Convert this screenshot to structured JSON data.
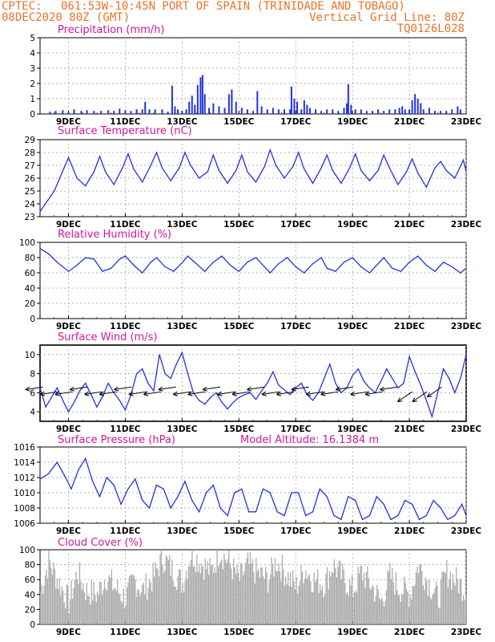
{
  "header": {
    "source": "CPTEC:",
    "location": "061:53W-10:45N   PORT OF SPAIN (TRINIDADE AND TOBAGO)",
    "date": "08DEC2020 80Z (GMT)",
    "grid_line": "Vertical Grid Line: 80Z",
    "run_code": "TQ0126L028"
  },
  "colors": {
    "header": "#e8742a",
    "title": "#d4169a",
    "series": "#2233dd",
    "bars": "#2233dd",
    "cloud": "#aaaaaa"
  },
  "x_ticks": [
    "9DEC",
    "11DEC",
    "13DEC",
    "15DEC",
    "17DEC",
    "19DEC",
    "21DEC",
    "23DEC"
  ],
  "chart_data": [
    {
      "type": "bar",
      "title": "Precipitation (mm/h)",
      "ylim": [
        0,
        5
      ],
      "yticks": [
        "0",
        "1",
        "2",
        "3",
        "4",
        "5"
      ],
      "x_range_days": [
        8.0,
        23.0
      ],
      "points": [
        [
          8.35,
          0.15
        ],
        [
          8.55,
          0.2
        ],
        [
          8.8,
          0.25
        ],
        [
          9.0,
          0.1
        ],
        [
          9.2,
          0.3
        ],
        [
          9.45,
          0.2
        ],
        [
          9.65,
          0.25
        ],
        [
          9.9,
          0.2
        ],
        [
          10.15,
          0.2
        ],
        [
          10.4,
          0.25
        ],
        [
          10.6,
          0.2
        ],
        [
          10.8,
          0.35
        ],
        [
          11.0,
          0.25
        ],
        [
          11.2,
          0.2
        ],
        [
          11.4,
          0.3
        ],
        [
          11.6,
          0.3
        ],
        [
          11.7,
          0.8
        ],
        [
          11.85,
          0.3
        ],
        [
          12.05,
          0.3
        ],
        [
          12.3,
          0.3
        ],
        [
          12.5,
          0.15
        ],
        [
          12.65,
          1.85
        ],
        [
          12.75,
          0.5
        ],
        [
          12.85,
          0.3
        ],
        [
          13.0,
          0.2
        ],
        [
          13.15,
          0.3
        ],
        [
          13.25,
          0.8
        ],
        [
          13.35,
          1.2
        ],
        [
          13.45,
          0.6
        ],
        [
          13.55,
          1.9
        ],
        [
          13.65,
          2.4
        ],
        [
          13.72,
          2.55
        ],
        [
          13.8,
          1.3
        ],
        [
          13.95,
          0.4
        ],
        [
          14.1,
          0.7
        ],
        [
          14.3,
          0.5
        ],
        [
          14.5,
          0.4
        ],
        [
          14.65,
          1.3
        ],
        [
          14.75,
          1.6
        ],
        [
          14.9,
          0.8
        ],
        [
          15.1,
          0.4
        ],
        [
          15.3,
          0.3
        ],
        [
          15.5,
          0.2
        ],
        [
          15.65,
          1.5
        ],
        [
          15.8,
          0.5
        ],
        [
          16.0,
          0.3
        ],
        [
          16.2,
          0.4
        ],
        [
          16.4,
          0.3
        ],
        [
          16.6,
          0.3
        ],
        [
          16.8,
          0.3
        ],
        [
          16.85,
          1.8
        ],
        [
          16.95,
          1.0
        ],
        [
          17.05,
          0.8
        ],
        [
          17.2,
          0.3
        ],
        [
          17.3,
          0.9
        ],
        [
          17.4,
          0.6
        ],
        [
          17.5,
          0.4
        ],
        [
          17.7,
          0.3
        ],
        [
          17.9,
          0.2
        ],
        [
          18.1,
          0.3
        ],
        [
          18.3,
          0.3
        ],
        [
          18.5,
          0.2
        ],
        [
          18.7,
          0.4
        ],
        [
          18.8,
          0.7
        ],
        [
          18.85,
          1.95
        ],
        [
          18.95,
          0.6
        ],
        [
          19.1,
          0.3
        ],
        [
          19.3,
          0.3
        ],
        [
          19.5,
          0.2
        ],
        [
          19.7,
          0.2
        ],
        [
          19.9,
          0.3
        ],
        [
          20.1,
          0.2
        ],
        [
          20.3,
          0.3
        ],
        [
          20.5,
          0.3
        ],
        [
          20.65,
          0.4
        ],
        [
          20.75,
          0.5
        ],
        [
          20.85,
          0.3
        ],
        [
          21.0,
          0.3
        ],
        [
          21.1,
          0.9
        ],
        [
          21.2,
          1.3
        ],
        [
          21.3,
          1.0
        ],
        [
          21.4,
          0.7
        ],
        [
          21.5,
          0.3
        ],
        [
          21.7,
          0.4
        ],
        [
          21.9,
          0.2
        ],
        [
          22.1,
          0.2
        ],
        [
          22.3,
          0.2
        ],
        [
          22.5,
          0.3
        ],
        [
          22.7,
          0.5
        ],
        [
          22.8,
          0.3
        ]
      ]
    },
    {
      "type": "line",
      "title": "Surface Temperature (nC)",
      "ylim": [
        23,
        29
      ],
      "yticks": [
        "23",
        "24",
        "25",
        "26",
        "27",
        "28",
        "29"
      ],
      "x": [
        8.0,
        8.5,
        9.0,
        9.3,
        9.6,
        9.9,
        10.1,
        10.3,
        10.6,
        10.9,
        11.1,
        11.3,
        11.6,
        11.9,
        12.1,
        12.3,
        12.6,
        12.9,
        13.1,
        13.3,
        13.6,
        13.9,
        14.1,
        14.3,
        14.6,
        14.9,
        15.1,
        15.3,
        15.6,
        15.9,
        16.1,
        16.3,
        16.6,
        16.9,
        17.1,
        17.3,
        17.6,
        17.9,
        18.1,
        18.3,
        18.6,
        18.9,
        19.1,
        19.3,
        19.6,
        19.9,
        20.1,
        20.3,
        20.6,
        20.9,
        21.1,
        21.3,
        21.6,
        21.9,
        22.1,
        22.3,
        22.6,
        22.9,
        23.0
      ],
      "y": [
        23.4,
        25.0,
        27.6,
        26.0,
        25.4,
        26.5,
        27.7,
        26.5,
        25.5,
        26.8,
        27.9,
        26.7,
        25.7,
        27.0,
        28.0,
        26.8,
        25.8,
        26.8,
        28.0,
        27.0,
        26.0,
        26.5,
        27.8,
        26.6,
        25.6,
        26.6,
        27.8,
        26.5,
        25.7,
        26.9,
        28.2,
        27.0,
        26.0,
        26.9,
        28.0,
        26.7,
        25.6,
        26.8,
        27.8,
        26.6,
        25.6,
        26.8,
        27.9,
        26.6,
        25.8,
        26.6,
        27.8,
        26.8,
        25.5,
        26.5,
        27.5,
        26.4,
        25.3,
        26.8,
        27.3,
        26.6,
        26.0,
        27.4,
        26.5
      ],
      "series": [
        {
          "name": "Surface Temperature",
          "values": "y"
        }
      ]
    },
    {
      "type": "line",
      "title": "Relative Humidity (%)",
      "ylim": [
        0,
        100
      ],
      "yticks": [
        "0",
        "20",
        "40",
        "60",
        "80",
        "100"
      ],
      "x": [
        8.0,
        8.3,
        8.6,
        9.0,
        9.3,
        9.6,
        9.9,
        10.2,
        10.5,
        10.8,
        11.0,
        11.3,
        11.6,
        11.9,
        12.1,
        12.4,
        12.7,
        13.0,
        13.2,
        13.5,
        13.8,
        14.1,
        14.4,
        14.7,
        15.0,
        15.3,
        15.6,
        15.9,
        16.1,
        16.4,
        16.7,
        17.0,
        17.3,
        17.6,
        17.9,
        18.1,
        18.4,
        18.7,
        19.0,
        19.3,
        19.6,
        19.9,
        20.1,
        20.4,
        20.7,
        21.0,
        21.3,
        21.6,
        21.9,
        22.2,
        22.5,
        22.8,
        23.0
      ],
      "y": [
        92,
        85,
        74,
        62,
        70,
        80,
        78,
        62,
        66,
        78,
        82,
        70,
        60,
        74,
        80,
        68,
        62,
        73,
        82,
        72,
        62,
        74,
        82,
        70,
        62,
        74,
        80,
        68,
        60,
        72,
        80,
        68,
        60,
        72,
        80,
        66,
        62,
        74,
        80,
        68,
        60,
        72,
        80,
        66,
        62,
        74,
        82,
        70,
        62,
        74,
        68,
        60,
        66
      ],
      "series": [
        {
          "name": "Relative Humidity",
          "values": "y"
        }
      ]
    },
    {
      "type": "line",
      "title": "Surface Wind (m/s)",
      "ylim": [
        3,
        11
      ],
      "yticks": [
        "4",
        "6",
        "8",
        "10"
      ],
      "x": [
        8.0,
        8.2,
        8.4,
        8.6,
        8.8,
        9.0,
        9.2,
        9.4,
        9.6,
        9.8,
        10.0,
        10.2,
        10.4,
        10.6,
        10.8,
        11.0,
        11.2,
        11.4,
        11.6,
        11.8,
        12.0,
        12.2,
        12.4,
        12.6,
        12.8,
        13.0,
        13.2,
        13.4,
        13.6,
        13.8,
        14.0,
        14.2,
        14.4,
        14.6,
        14.8,
        15.0,
        15.2,
        15.4,
        15.6,
        15.8,
        16.0,
        16.2,
        16.4,
        16.6,
        16.8,
        17.0,
        17.2,
        17.4,
        17.6,
        17.8,
        18.0,
        18.2,
        18.4,
        18.6,
        18.8,
        19.0,
        19.2,
        19.4,
        19.6,
        19.8,
        20.0,
        20.2,
        20.4,
        20.6,
        20.8,
        21.0,
        21.2,
        21.4,
        21.6,
        21.8,
        22.0,
        22.2,
        22.4,
        22.6,
        22.8,
        23.0
      ],
      "y": [
        6.5,
        4.5,
        5.5,
        6.5,
        5.2,
        4.0,
        5.0,
        6.2,
        7.0,
        5.8,
        4.5,
        5.6,
        7.0,
        6.0,
        5.2,
        4.2,
        5.8,
        8.0,
        8.5,
        7.0,
        6.2,
        10.0,
        8.0,
        7.5,
        9.0,
        10.2,
        8.0,
        6.0,
        5.2,
        4.8,
        5.5,
        6.0,
        5.0,
        4.3,
        5.0,
        5.5,
        5.8,
        6.0,
        5.3,
        6.2,
        7.0,
        8.2,
        6.8,
        6.3,
        5.8,
        6.5,
        7.0,
        5.8,
        5.2,
        6.0,
        7.5,
        9.0,
        7.0,
        6.0,
        6.5,
        7.8,
        8.5,
        7.2,
        6.5,
        6.0,
        7.2,
        8.5,
        7.5,
        6.5,
        7.0,
        9.8,
        8.2,
        6.8,
        5.2,
        3.5,
        6.0,
        8.5,
        7.5,
        6.0,
        7.5,
        10.0
      ],
      "series": [
        {
          "name": "Surface Wind",
          "values": "y"
        }
      ],
      "vectors_note": "wind direction arrows drawn along series"
    },
    {
      "type": "line",
      "title": "Surface Pressure (hPa)",
      "annotation": "Model Altitude: 16.1384 m",
      "ylim": [
        1006,
        1016
      ],
      "yticks": [
        "1006",
        "1008",
        "1010",
        "1012",
        "1014",
        "1016"
      ],
      "x": [
        8.0,
        8.3,
        8.6,
        8.9,
        9.1,
        9.35,
        9.6,
        9.85,
        10.1,
        10.35,
        10.6,
        10.85,
        11.1,
        11.35,
        11.6,
        11.85,
        12.1,
        12.35,
        12.6,
        12.85,
        13.1,
        13.35,
        13.6,
        13.85,
        14.1,
        14.35,
        14.6,
        14.85,
        15.1,
        15.35,
        15.6,
        15.85,
        16.1,
        16.35,
        16.6,
        16.85,
        17.1,
        17.35,
        17.6,
        17.85,
        18.1,
        18.35,
        18.6,
        18.85,
        19.1,
        19.35,
        19.6,
        19.85,
        20.1,
        20.35,
        20.6,
        20.85,
        21.1,
        21.35,
        21.6,
        21.85,
        22.1,
        22.35,
        22.6,
        22.85,
        23.0
      ],
      "y": [
        1011.8,
        1012.5,
        1014.0,
        1012.0,
        1010.5,
        1013.0,
        1014.5,
        1011.5,
        1009.5,
        1012.0,
        1011.0,
        1008.5,
        1010.5,
        1011.8,
        1009.0,
        1008.0,
        1011.0,
        1010.5,
        1008.0,
        1009.5,
        1011.5,
        1009.0,
        1007.5,
        1010.0,
        1011.0,
        1008.0,
        1007.0,
        1010.0,
        1010.5,
        1007.5,
        1007.5,
        1010.5,
        1010.0,
        1007.5,
        1007.0,
        1010.0,
        1010.0,
        1007.0,
        1007.5,
        1010.5,
        1009.5,
        1007.0,
        1006.5,
        1009.5,
        1009.0,
        1006.5,
        1007.0,
        1009.5,
        1008.5,
        1006.5,
        1007.0,
        1009.0,
        1008.5,
        1006.5,
        1007.0,
        1009.0,
        1008.0,
        1006.5,
        1007.0,
        1008.5,
        1007.0
      ],
      "series": [
        {
          "name": "Surface Pressure",
          "values": "y"
        }
      ]
    },
    {
      "type": "bar",
      "title": "Cloud Cover (%)",
      "ylim": [
        0,
        100
      ],
      "yticks": [
        "0",
        "20",
        "40",
        "60",
        "80",
        "100"
      ],
      "x_range_days": [
        8.0,
        23.0
      ],
      "profile_x": [
        8.0,
        8.3,
        8.6,
        9.0,
        9.3,
        9.6,
        10.0,
        10.3,
        10.6,
        11.0,
        11.3,
        11.6,
        12.0,
        12.3,
        12.6,
        13.0,
        13.3,
        13.6,
        14.0,
        14.3,
        14.6,
        15.0,
        15.3,
        15.6,
        16.0,
        16.3,
        16.6,
        17.0,
        17.3,
        17.6,
        18.0,
        18.3,
        18.6,
        19.0,
        19.3,
        19.6,
        20.0,
        20.3,
        20.6,
        21.0,
        21.3,
        21.6,
        22.0,
        22.3,
        22.6,
        23.0
      ],
      "profile_y": [
        45,
        85,
        60,
        30,
        70,
        45,
        40,
        65,
        50,
        35,
        60,
        45,
        65,
        90,
        75,
        55,
        95,
        85,
        70,
        98,
        85,
        60,
        80,
        70,
        60,
        85,
        70,
        50,
        75,
        60,
        55,
        80,
        65,
        45,
        70,
        55,
        30,
        65,
        50,
        40,
        80,
        60,
        35,
        70,
        60,
        45
      ]
    }
  ]
}
